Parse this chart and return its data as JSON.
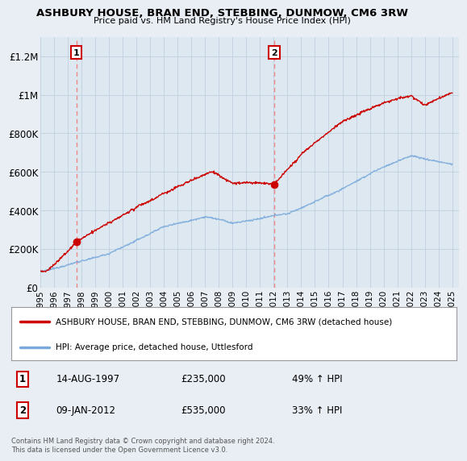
{
  "title": "ASHBURY HOUSE, BRAN END, STEBBING, DUNMOW, CM6 3RW",
  "subtitle": "Price paid vs. HM Land Registry's House Price Index (HPI)",
  "ylim": [
    0,
    1300000
  ],
  "yticks": [
    0,
    200000,
    400000,
    600000,
    800000,
    1000000,
    1200000
  ],
  "ytick_labels": [
    "£0",
    "£200K",
    "£400K",
    "£600K",
    "£800K",
    "£1M",
    "£1.2M"
  ],
  "x_start_year": 1995,
  "x_end_year": 2025,
  "xtick_years": [
    1995,
    1996,
    1997,
    1998,
    1999,
    2000,
    2001,
    2002,
    2003,
    2004,
    2005,
    2006,
    2007,
    2008,
    2009,
    2010,
    2011,
    2012,
    2013,
    2014,
    2015,
    2016,
    2017,
    2018,
    2019,
    2020,
    2021,
    2022,
    2023,
    2024,
    2025
  ],
  "sale1_x": 1997.62,
  "sale1_y": 235000,
  "sale1_label": "1",
  "sale1_date": "14-AUG-1997",
  "sale1_price": "£235,000",
  "sale1_hpi": "49% ↑ HPI",
  "sale2_x": 2012.03,
  "sale2_y": 535000,
  "sale2_label": "2",
  "sale2_date": "09-JAN-2012",
  "sale2_price": "£535,000",
  "sale2_hpi": "33% ↑ HPI",
  "hpi_line_color": "#7aaadd",
  "property_line_color": "#cc0000",
  "dashed_line_color": "#ee8888",
  "sale_dot_color": "#cc0000",
  "legend_property_label": "ASHBURY HOUSE, BRAN END, STEBBING, DUNMOW, CM6 3RW (detached house)",
  "legend_hpi_label": "HPI: Average price, detached house, Uttlesford",
  "footer_text": "Contains HM Land Registry data © Crown copyright and database right 2024.\nThis data is licensed under the Open Government Licence v3.0.",
  "background_color": "#e8eef4",
  "plot_background": "#dde8f0",
  "grid_color": "#c0d0e0"
}
